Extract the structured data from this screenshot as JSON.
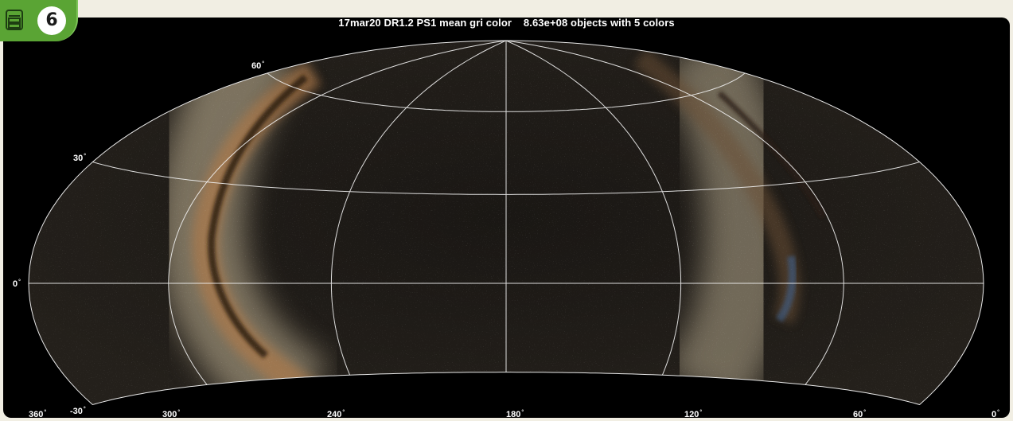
{
  "badge": {
    "number": "6",
    "icon": "stacked-layers-icon",
    "color": "#5aa434"
  },
  "map": {
    "title": "17mar20 DR1.2 PS1 mean gri color    8.63e+08 objects with 5 colors",
    "projection": "hammer-aitoff",
    "grid": true,
    "lon_labels": [
      "360",
      "300",
      "240",
      "180",
      "120",
      "60",
      "0"
    ],
    "lat_labels": [
      "60",
      "30",
      "0",
      "-30"
    ],
    "degree_symbol": "°"
  }
}
